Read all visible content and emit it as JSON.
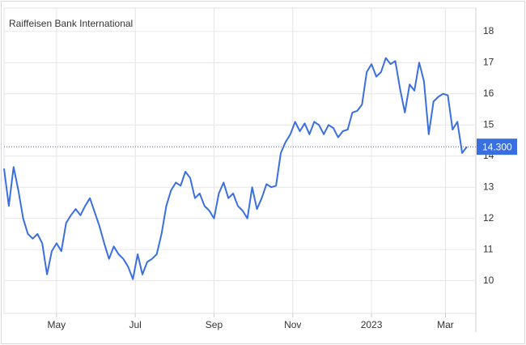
{
  "chart_data": {
    "type": "line",
    "title": "Raiffeisen Bank International",
    "series": [
      {
        "name": "Raiffeisen Bank International",
        "color": "#3a6fe0",
        "values": [
          13.6,
          12.4,
          13.65,
          12.9,
          12.0,
          11.5,
          11.35,
          11.5,
          11.2,
          10.2,
          10.95,
          11.2,
          10.95,
          11.85,
          12.1,
          12.3,
          12.1,
          12.4,
          12.65,
          12.2,
          11.75,
          11.2,
          10.7,
          11.1,
          10.85,
          10.7,
          10.45,
          10.05,
          10.85,
          10.2,
          10.6,
          10.7,
          10.85,
          11.5,
          12.4,
          12.9,
          13.15,
          13.05,
          13.5,
          13.3,
          12.65,
          12.8,
          12.4,
          12.25,
          12.0,
          12.8,
          13.15,
          12.65,
          12.8,
          12.4,
          12.25,
          12.0,
          13.0,
          12.3,
          12.65,
          13.1,
          13.0,
          13.05,
          14.1,
          14.45,
          14.7,
          15.1,
          14.8,
          15.05,
          14.7,
          15.1,
          15.0,
          14.7,
          15.0,
          14.9,
          14.6,
          14.8,
          14.85,
          15.4,
          15.45,
          15.65,
          16.7,
          16.95,
          16.55,
          16.7,
          17.15,
          16.95,
          17.05,
          16.15,
          15.4,
          16.3,
          16.1,
          17.0,
          16.4,
          14.7,
          15.75,
          15.9,
          16.0,
          15.95,
          14.85,
          15.1,
          14.1,
          14.3
        ]
      }
    ],
    "last_price": {
      "value": 14.3,
      "label": "14.300"
    },
    "xlim": [
      0,
      97
    ],
    "xticks": [
      {
        "value": 11,
        "label": "May"
      },
      {
        "value": 27.5,
        "label": "Jul"
      },
      {
        "value": 44,
        "label": "Sep"
      },
      {
        "value": 60.5,
        "label": "Nov"
      },
      {
        "value": 77,
        "label": "2023"
      },
      {
        "value": 92.5,
        "label": "Mar"
      }
    ],
    "ylim": [
      8.95,
      18.75
    ],
    "yticks": [
      10,
      11,
      12,
      13,
      14,
      15,
      16,
      17,
      18
    ],
    "grid": true
  }
}
